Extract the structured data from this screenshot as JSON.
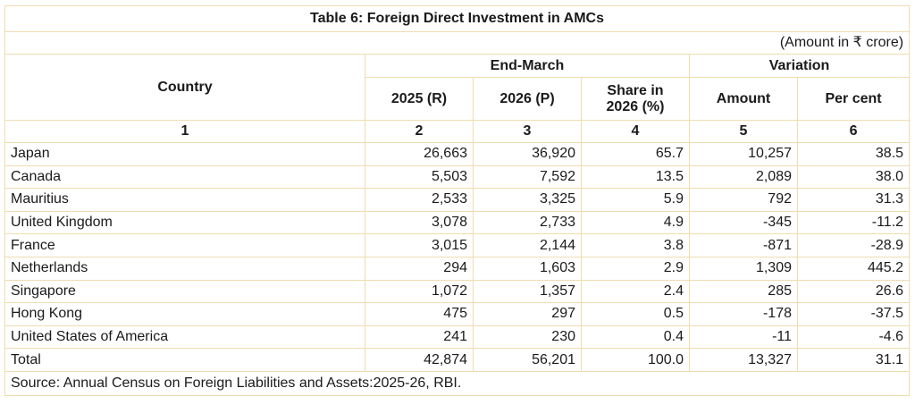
{
  "table": {
    "title": "Table 6: Foreign Direct Investment in AMCs",
    "unit_note": "(Amount in ₹ crore)",
    "headers": {
      "country": "Country",
      "end_march": "End-March",
      "variation": "Variation",
      "col_2025": "2025 (R)",
      "col_2026": "2026 (P)",
      "share_line1": "Share in",
      "share_line2": "2026 (%)",
      "amount": "Amount",
      "per_cent": "Per cent"
    },
    "column_numbers": [
      "1",
      "2",
      "3",
      "4",
      "5",
      "6"
    ],
    "rows": [
      {
        "country": "Japan",
        "y2025": "26,663",
        "y2026": "36,920",
        "share": "65.7",
        "amount": "10,257",
        "per_cent": "38.5"
      },
      {
        "country": "Canada",
        "y2025": "5,503",
        "y2026": "7,592",
        "share": "13.5",
        "amount": "2,089",
        "per_cent": "38.0"
      },
      {
        "country": "Mauritius",
        "y2025": "2,533",
        "y2026": "3,325",
        "share": "5.9",
        "amount": "792",
        "per_cent": "31.3"
      },
      {
        "country": "United Kingdom",
        "y2025": "3,078",
        "y2026": "2,733",
        "share": "4.9",
        "amount": "-345",
        "per_cent": "-11.2"
      },
      {
        "country": "France",
        "y2025": "3,015",
        "y2026": "2,144",
        "share": "3.8",
        "amount": "-871",
        "per_cent": "-28.9"
      },
      {
        "country": "Netherlands",
        "y2025": "294",
        "y2026": "1,603",
        "share": "2.9",
        "amount": "1,309",
        "per_cent": "445.2"
      },
      {
        "country": "Singapore",
        "y2025": "1,072",
        "y2026": "1,357",
        "share": "2.4",
        "amount": "285",
        "per_cent": "26.6"
      },
      {
        "country": "Hong Kong",
        "y2025": "475",
        "y2026": "297",
        "share": "0.5",
        "amount": "-178",
        "per_cent": "-37.5"
      },
      {
        "country": "United States of America",
        "y2025": "241",
        "y2026": "230",
        "share": "0.4",
        "amount": "-11",
        "per_cent": "-4.6"
      },
      {
        "country": "Total",
        "y2025": "42,874",
        "y2026": "56,201",
        "share": "100.0",
        "amount": "13,327",
        "per_cent": "31.1"
      }
    ],
    "source": "Source: Annual Census on Foreign Liabilities and Assets:2025-26, RBI."
  }
}
